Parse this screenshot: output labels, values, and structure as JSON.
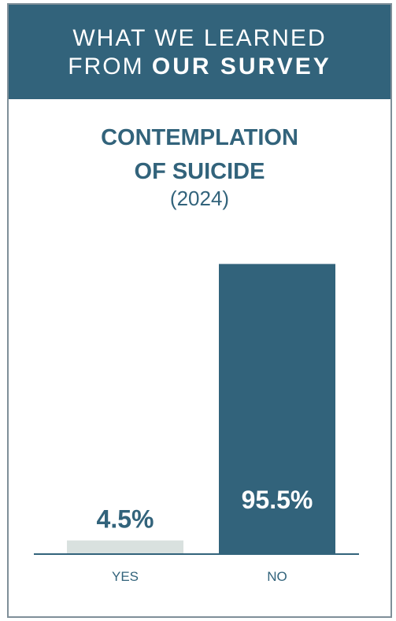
{
  "header": {
    "line1": "WHAT WE LEARNED",
    "line2_prefix": "FROM ",
    "line2_bold": "OUR SURVEY"
  },
  "chart_data": {
    "type": "bar",
    "title_line1": "CONTEMPLATION",
    "title_line2": "OF SUICIDE",
    "subtitle": "(2024)",
    "categories": [
      "YES",
      "NO"
    ],
    "values": [
      4.5,
      95.5
    ],
    "value_labels": [
      "4.5%",
      "95.5%"
    ],
    "unit": "%",
    "ylim": [
      0,
      100
    ],
    "colors": [
      "#d9e1df",
      "#32637b"
    ],
    "label_colors": [
      "#32637b",
      "#ffffff"
    ],
    "axis_color": "#32637b",
    "grid": false,
    "legend": "none"
  }
}
